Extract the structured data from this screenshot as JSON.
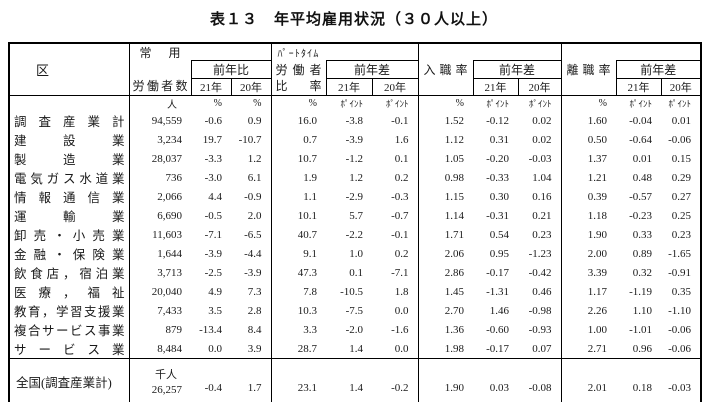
{
  "title": "表１３　年平均雇用状況（３０人以上）",
  "colors": {
    "text": "#1a1a1a",
    "border": "#000000",
    "background": "#ffffff"
  },
  "header": {
    "category": "区分",
    "regular": {
      "top": "常用",
      "bottom": "労働者数",
      "sub": "前年比",
      "y21": "21年",
      "y20": "20年"
    },
    "parttime": {
      "top": "ﾊﾟｰﾄﾀｲﾑ",
      "mid": "労働者",
      "bottom": "比率",
      "sub": "前年差",
      "y21": "21年",
      "y20": "20年"
    },
    "entry": {
      "label": "入職率",
      "sub": "前年差",
      "y21": "21年",
      "y20": "20年"
    },
    "separation": {
      "label": "離職率",
      "sub": "前年差",
      "y21": "21年",
      "y20": "20年"
    }
  },
  "units": [
    "人",
    "%",
    "%",
    "%",
    "ﾎﾟｲﾝﾄ",
    "ﾎﾟｲﾝﾄ",
    "%",
    "ﾎﾟｲﾝﾄ",
    "ﾎﾟｲﾝﾄ",
    "%",
    "ﾎﾟｲﾝﾄ",
    "ﾎﾟｲﾝﾄ"
  ],
  "rows": [
    [
      "調査産業計",
      "94,559",
      "-0.6",
      "0.9",
      "16.0",
      "-3.8",
      "-0.1",
      "1.52",
      "-0.12",
      "0.02",
      "1.60",
      "-0.04",
      "0.01"
    ],
    [
      "建設業",
      "3,234",
      "19.7",
      "-10.7",
      "0.7",
      "-3.9",
      "1.6",
      "1.12",
      "0.31",
      "0.02",
      "0.50",
      "-0.64",
      "-0.06"
    ],
    [
      "製造業",
      "28,037",
      "-3.3",
      "1.2",
      "10.7",
      "-1.2",
      "0.1",
      "1.05",
      "-0.20",
      "-0.03",
      "1.37",
      "0.01",
      "0.15"
    ],
    [
      "電気ガス水道業",
      "736",
      "-3.0",
      "6.1",
      "1.9",
      "1.2",
      "0.2",
      "0.98",
      "-0.33",
      "1.04",
      "1.21",
      "0.48",
      "0.29"
    ],
    [
      "情報通信業",
      "2,066",
      "4.4",
      "-0.9",
      "1.1",
      "-2.9",
      "-0.3",
      "1.15",
      "0.30",
      "0.16",
      "0.39",
      "-0.57",
      "0.27"
    ],
    [
      "運輸業",
      "6,690",
      "-0.5",
      "2.0",
      "10.1",
      "5.7",
      "-0.7",
      "1.14",
      "-0.31",
      "0.21",
      "1.18",
      "-0.23",
      "0.25"
    ],
    [
      "卸売・小売業",
      "11,603",
      "-7.1",
      "-6.5",
      "40.7",
      "-2.2",
      "-0.1",
      "1.71",
      "0.54",
      "0.23",
      "1.90",
      "0.33",
      "0.23"
    ],
    [
      "金融・保険業",
      "1,644",
      "-3.9",
      "-4.4",
      "9.1",
      "1.0",
      "0.2",
      "2.06",
      "0.95",
      "-1.23",
      "2.00",
      "0.89",
      "-1.65"
    ],
    [
      "飲食店，宿泊業",
      "3,713",
      "-2.5",
      "-3.9",
      "47.3",
      "0.1",
      "-7.1",
      "2.86",
      "-0.17",
      "-0.42",
      "3.39",
      "0.32",
      "-0.91"
    ],
    [
      "医療，福祉",
      "20,040",
      "4.9",
      "7.3",
      "7.8",
      "-10.5",
      "1.8",
      "1.45",
      "-1.31",
      "0.46",
      "1.17",
      "-1.19",
      "0.35"
    ],
    [
      "教育，学習支援業",
      "7,433",
      "3.5",
      "2.8",
      "10.3",
      "-7.5",
      "0.0",
      "2.70",
      "1.46",
      "-0.98",
      "2.26",
      "1.10",
      "-1.10"
    ],
    [
      "複合サービス事業",
      "879",
      "-13.4",
      "8.4",
      "3.3",
      "-2.0",
      "-1.6",
      "1.36",
      "-0.60",
      "-0.93",
      "1.00",
      "-1.01",
      "-0.06"
    ],
    [
      "サービス業",
      "8,484",
      "0.0",
      "3.9",
      "28.7",
      "1.4",
      "0.0",
      "1.98",
      "-0.17",
      "0.07",
      "2.71",
      "0.96",
      "-0.06"
    ]
  ],
  "total": {
    "label": "全国(調査産業計)",
    "unit": "千人",
    "workers": "26,257",
    "y21": "-0.4",
    "y20": "1.7",
    "pt": "23.1",
    "pt21": "1.4",
    "pt20": "-0.2",
    "entry": "1.90",
    "entry21": "0.03",
    "entry20": "-0.08",
    "sep": "2.01",
    "sep21": "0.18",
    "sep20": "-0.03"
  }
}
